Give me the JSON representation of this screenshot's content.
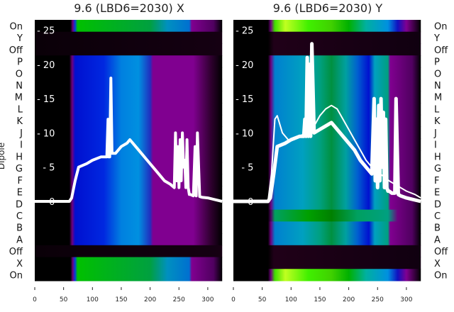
{
  "chart_data": [
    {
      "type": "heatmap",
      "title": "9.6 (LBD6=2030) X",
      "ylabel": "Dipole",
      "row_labels": [
        "On",
        "Y",
        "Off",
        "P",
        "O",
        "N",
        "M",
        "L",
        "K",
        "J",
        "I",
        "H",
        "G",
        "F",
        "E",
        "D",
        "C",
        "B",
        "A",
        "Off",
        "X",
        "On"
      ],
      "x_ticks": [
        0,
        50,
        100,
        150,
        200,
        250,
        300
      ],
      "xlim": [
        0,
        325
      ],
      "overlay_y_ticks": [
        0,
        5,
        10,
        15,
        20,
        25
      ],
      "overlay_ylim": [
        -11.6,
        26.5
      ],
      "row_colormaps": {
        "signal": [
          [
            0,
            "#000000"
          ],
          [
            60,
            "#000000"
          ],
          [
            65,
            "#700080"
          ],
          [
            70,
            "#0010d0"
          ],
          [
            120,
            "#0028e0"
          ],
          [
            150,
            "#0080e0"
          ],
          [
            180,
            "#0090e0"
          ],
          [
            200,
            "#2030c0"
          ],
          [
            205,
            "#800090"
          ],
          [
            275,
            "#800090"
          ],
          [
            305,
            "#300030"
          ],
          [
            325,
            "#000000"
          ]
        ],
        "on": [
          [
            0,
            "#000000"
          ],
          [
            62,
            "#000000"
          ],
          [
            66,
            "#700080"
          ],
          [
            70,
            "#0040e0"
          ],
          [
            74,
            "#00c000"
          ],
          [
            200,
            "#00a040"
          ],
          [
            230,
            "#0090c0"
          ],
          [
            268,
            "#0070d0"
          ],
          [
            272,
            "#800090"
          ],
          [
            310,
            "#500060"
          ],
          [
            325,
            "#000000"
          ]
        ],
        "dark": [
          [
            0,
            "#0a0008"
          ],
          [
            325,
            "#150012"
          ]
        ]
      },
      "row_types": [
        "on",
        "dark",
        "dark",
        "signal",
        "signal",
        "signal",
        "signal",
        "signal",
        "signal",
        "signal",
        "signal",
        "signal",
        "signal",
        "signal",
        "signal",
        "signal",
        "signal",
        "signal",
        "signal",
        "dark",
        "on",
        "on"
      ],
      "series": [
        {
          "name": "trace",
          "width": 4,
          "x": [
            0,
            60,
            64,
            70,
            76,
            90,
            100,
            115,
            125,
            127,
            128,
            130,
            132,
            134,
            136,
            140,
            150,
            160,
            165,
            175,
            185,
            195,
            205,
            215,
            225,
            235,
            242,
            244,
            246,
            248,
            250,
            252,
            254,
            256,
            258,
            260,
            262,
            264,
            266,
            268,
            270,
            275,
            278,
            280,
            282,
            286,
            290,
            300,
            310,
            325
          ],
          "y": [
            0,
            0,
            0.5,
            3,
            5,
            5.5,
            6,
            6.5,
            6.5,
            12,
            6.5,
            6.5,
            18,
            7,
            7,
            7,
            8,
            8.5,
            9,
            8,
            7,
            6,
            5,
            4,
            3,
            2.5,
            2,
            10,
            3,
            8,
            2,
            9,
            3,
            10,
            5,
            6,
            2,
            9,
            2,
            1,
            1,
            0.8,
            8,
            0.8,
            10,
            0.7,
            0.6,
            0.5,
            0.3,
            0
          ]
        }
      ]
    },
    {
      "type": "heatmap",
      "title": "9.6 (LBD6=2030) Y",
      "row_labels": [
        "On",
        "Y",
        "Off",
        "P",
        "O",
        "N",
        "M",
        "L",
        "K",
        "J",
        "I",
        "H",
        "G",
        "F",
        "E",
        "D",
        "C",
        "B",
        "A",
        "Off",
        "X",
        "On"
      ],
      "x_ticks": [
        0,
        50,
        100,
        150,
        200,
        250,
        300
      ],
      "xlim": [
        0,
        325
      ],
      "overlay_y_ticks": [
        0,
        5,
        10,
        15,
        20,
        25
      ],
      "overlay_ylim": [
        -11.6,
        26.5
      ],
      "row_colormaps": {
        "signal": [
          [
            0,
            "#000000"
          ],
          [
            60,
            "#000000"
          ],
          [
            65,
            "#700080"
          ],
          [
            72,
            "#0080d0"
          ],
          [
            120,
            "#00a0c0"
          ],
          [
            150,
            "#00a080"
          ],
          [
            170,
            "#009040"
          ],
          [
            195,
            "#00a0a0"
          ],
          [
            215,
            "#0060d0"
          ],
          [
            235,
            "#0010d0"
          ],
          [
            245,
            "#00a0c0"
          ],
          [
            268,
            "#00a080"
          ],
          [
            272,
            "#800090"
          ],
          [
            310,
            "#500060"
          ],
          [
            325,
            "#000000"
          ]
        ],
        "green": [
          [
            0,
            "#000000"
          ],
          [
            60,
            "#000000"
          ],
          [
            65,
            "#500060"
          ],
          [
            72,
            "#00a060"
          ],
          [
            130,
            "#00a000"
          ],
          [
            170,
            "#008000"
          ],
          [
            215,
            "#00a060"
          ],
          [
            268,
            "#00a080"
          ],
          [
            285,
            "#700080"
          ],
          [
            310,
            "#500060"
          ],
          [
            325,
            "#000000"
          ]
        ],
        "on": [
          [
            0,
            "#000000"
          ],
          [
            60,
            "#000000"
          ],
          [
            65,
            "#700080"
          ],
          [
            72,
            "#40e000"
          ],
          [
            90,
            "#c0ff20"
          ],
          [
            130,
            "#40f000"
          ],
          [
            170,
            "#40d000"
          ],
          [
            200,
            "#00b000"
          ],
          [
            230,
            "#00b0a0"
          ],
          [
            268,
            "#0090e0"
          ],
          [
            285,
            "#1010c0"
          ],
          [
            300,
            "#800090"
          ],
          [
            325,
            "#000000"
          ]
        ],
        "dark": [
          [
            0,
            "#000000"
          ],
          [
            60,
            "#000000"
          ],
          [
            70,
            "#200018"
          ],
          [
            325,
            "#100010"
          ]
        ]
      },
      "row_types": [
        "on",
        "dark",
        "dark",
        "signal",
        "signal",
        "signal",
        "signal",
        "signal",
        "signal",
        "signal",
        "signal",
        "signal",
        "signal",
        "signal",
        "signal",
        "signal",
        "green",
        "signal",
        "signal",
        "dark",
        "dark",
        "on"
      ],
      "series": [
        {
          "name": "trace-lower",
          "width": 5,
          "x": [
            0,
            60,
            64,
            70,
            76,
            90,
            100,
            115,
            122,
            124,
            126,
            128,
            130,
            132,
            134,
            136,
            140,
            150,
            160,
            170,
            180,
            190,
            200,
            210,
            220,
            230,
            240,
            244,
            246,
            248,
            250,
            252,
            254,
            256,
            258,
            260,
            262,
            264,
            266,
            268,
            270,
            275,
            280,
            282,
            286,
            290,
            300,
            310,
            325
          ],
          "y": [
            0,
            0,
            0.5,
            4,
            8,
            8.5,
            9,
            9.5,
            9.5,
            12,
            9.5,
            21,
            9.5,
            20,
            9.5,
            23,
            10,
            10.5,
            11,
            11.5,
            10.5,
            9.5,
            8.5,
            7.5,
            6,
            5,
            4,
            15,
            3,
            12,
            2,
            14,
            3,
            15,
            5,
            13,
            2,
            12,
            2,
            1.5,
            1.5,
            1.2,
            1.2,
            15,
            1,
            0.8,
            0.5,
            0.3,
            0
          ]
        },
        {
          "name": "trace-upper",
          "width": 2,
          "x": [
            0,
            60,
            66,
            72,
            76,
            85,
            95,
            105,
            115,
            125,
            140,
            150,
            160,
            170,
            180,
            190,
            200,
            210,
            220,
            230,
            240,
            270,
            280,
            300,
            315,
            325
          ],
          "y": [
            0,
            0,
            4,
            12,
            12.5,
            10,
            9,
            9,
            9.5,
            10,
            11,
            12.5,
            13.5,
            14,
            13.5,
            12,
            10.5,
            9,
            7.5,
            6,
            5,
            3,
            2.5,
            1.5,
            1,
            0.5
          ]
        }
      ]
    }
  ]
}
